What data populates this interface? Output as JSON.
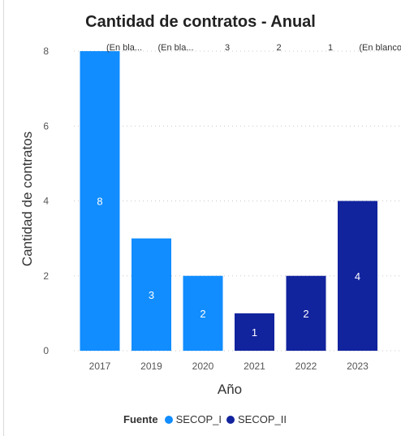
{
  "chart_data": {
    "type": "bar",
    "title": "Cantidad de contratos - Anual",
    "xlabel": "Año",
    "ylabel": "Cantidad de contratos",
    "categories": [
      "2017",
      "2019",
      "2020",
      "2021",
      "2022",
      "2023"
    ],
    "values": [
      8,
      3,
      2,
      1,
      2,
      4
    ],
    "data_labels": [
      "8",
      "3",
      "2",
      "1",
      "2",
      "4"
    ],
    "top_labels": [
      "(En bla...",
      "(En bla...",
      "3",
      "2",
      "1",
      "(En blanco)"
    ],
    "bar_source": [
      "SECOP_I",
      "SECOP_I",
      "SECOP_I",
      "SECOP_II",
      "SECOP_II",
      "SECOP_II"
    ],
    "ylim": [
      0,
      8
    ],
    "yticks": [
      "0",
      "2",
      "4",
      "6",
      "8"
    ],
    "grid": true,
    "legend_position": "bottom",
    "legend": {
      "title": "Fuente",
      "items": [
        {
          "name": "SECOP_I",
          "color": "#118dff"
        },
        {
          "name": "SECOP_II",
          "color": "#12239e"
        }
      ]
    }
  }
}
